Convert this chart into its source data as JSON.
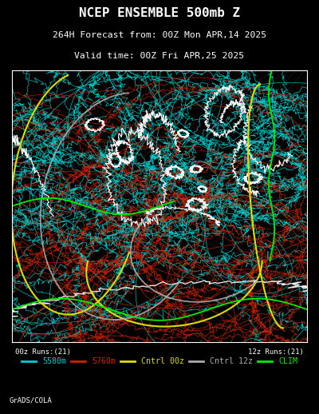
{
  "title_line1": "NCEP ENSEMBLE 500mb Z",
  "title_line2": "264H Forecast from: 00Z Mon APR,14 2025",
  "title_line3": "Valid time: 00Z Fri APR,25 2025",
  "background_color": "#000000",
  "map_bg": "#000000",
  "text_color": "#ffffff",
  "border_color": "#ffffff",
  "legend_items": [
    {
      "label": "5580m",
      "color": "#00cccc"
    },
    {
      "label": "5760m",
      "color": "#cc2200"
    },
    {
      "label": "Cntrl 00z",
      "color": "#dddd00"
    },
    {
      "label": "Cntrl 12z",
      "color": "#aaaaaa"
    },
    {
      "label": "CLIM",
      "color": "#00ee00"
    }
  ],
  "runs_label_left": "00z Runs:(21)",
  "runs_label_right": "12z Runs:(21)",
  "grads_label": "GrADS/COLA",
  "seed": 42
}
